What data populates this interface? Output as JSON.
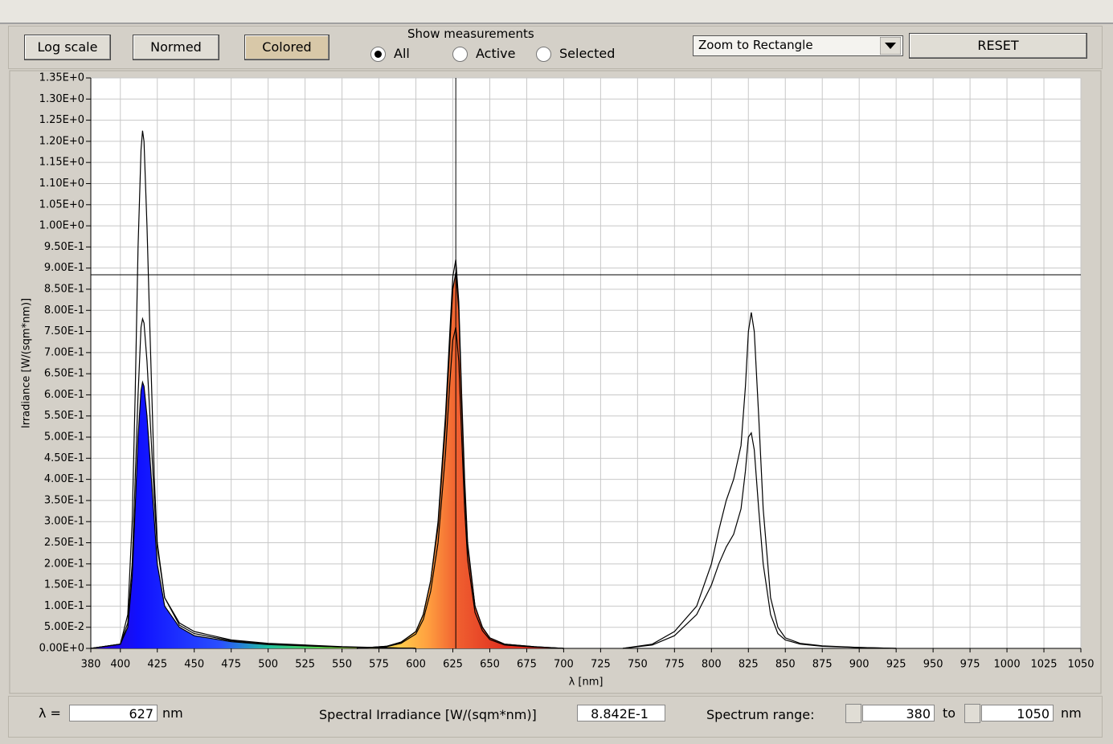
{
  "toolbar": {
    "buttons": [
      {
        "label": "Log scale",
        "pressed": false
      },
      {
        "label": "Normed",
        "pressed": false
      },
      {
        "label": "Colored",
        "pressed": true
      }
    ],
    "show_label": "Show measurements",
    "radios": [
      {
        "label": "All",
        "selected": true
      },
      {
        "label": "Active",
        "selected": false
      },
      {
        "label": "Selected",
        "selected": false
      }
    ],
    "dropdown": "Zoom to Rectangle",
    "reset": "RESET"
  },
  "chart_data": {
    "type": "line",
    "xlabel": "λ [nm]",
    "ylabel": "Irradiance [W/(sqm*nm)]",
    "xlim": [
      380,
      1050
    ],
    "xticks": [
      380,
      400,
      425,
      450,
      475,
      500,
      525,
      550,
      575,
      600,
      625,
      650,
      675,
      700,
      725,
      750,
      775,
      800,
      825,
      850,
      875,
      900,
      925,
      950,
      975,
      1000,
      1025,
      1050
    ],
    "ylim": [
      0,
      1.35
    ],
    "yticks": [
      {
        "value": 0,
        "label": "0.00E+0"
      },
      {
        "value": 0.05,
        "label": "5.00E-2"
      },
      {
        "value": 0.1,
        "label": "1.00E-1"
      },
      {
        "value": 0.15,
        "label": "1.50E-1"
      },
      {
        "value": 0.2,
        "label": "2.00E-1"
      },
      {
        "value": 0.25,
        "label": "2.50E-1"
      },
      {
        "value": 0.3,
        "label": "3.00E-1"
      },
      {
        "value": 0.35,
        "label": "3.50E-1"
      },
      {
        "value": 0.4,
        "label": "4.00E-1"
      },
      {
        "value": 0.45,
        "label": "4.50E-1"
      },
      {
        "value": 0.5,
        "label": "5.00E-1"
      },
      {
        "value": 0.55,
        "label": "5.50E-1"
      },
      {
        "value": 0.6,
        "label": "6.00E-1"
      },
      {
        "value": 0.65,
        "label": "6.50E-1"
      },
      {
        "value": 0.7,
        "label": "7.00E-1"
      },
      {
        "value": 0.75,
        "label": "7.50E-1"
      },
      {
        "value": 0.8,
        "label": "8.00E-1"
      },
      {
        "value": 0.85,
        "label": "8.50E-1"
      },
      {
        "value": 0.9,
        "label": "9.00E-1"
      },
      {
        "value": 0.95,
        "label": "9.50E-1"
      },
      {
        "value": 1,
        "label": "1.00E+0"
      },
      {
        "value": 1.05,
        "label": "1.05E+0"
      },
      {
        "value": 1.1,
        "label": "1.10E+0"
      },
      {
        "value": 1.15,
        "label": "1.15E+0"
      },
      {
        "value": 1.2,
        "label": "1.20E+0"
      },
      {
        "value": 1.25,
        "label": "1.25E+0"
      },
      {
        "value": 1.3,
        "label": "1.30E+0"
      },
      {
        "value": 1.35,
        "label": "1.35E+0"
      }
    ],
    "grid": true,
    "series": [
      {
        "color": "#000000",
        "colored": false,
        "x": [
          380,
          400,
          405,
          408,
          410,
          412,
          414,
          415,
          416,
          418,
          420,
          423,
          425,
          430,
          440,
          450,
          475,
          500,
          550,
          600
        ],
        "values": [
          0,
          0.01,
          0.08,
          0.3,
          0.6,
          0.95,
          1.18,
          1.225,
          1.2,
          1.0,
          0.75,
          0.4,
          0.25,
          0.12,
          0.06,
          0.04,
          0.02,
          0.012,
          0.004,
          0
        ]
      },
      {
        "color": "#000000",
        "colored": false,
        "x": [
          380,
          400,
          405,
          408,
          410,
          412,
          414,
          415,
          416,
          418,
          420,
          423,
          425,
          430,
          440,
          450,
          475,
          500,
          550,
          600
        ],
        "values": [
          0,
          0.01,
          0.06,
          0.2,
          0.4,
          0.6,
          0.76,
          0.78,
          0.77,
          0.68,
          0.55,
          0.35,
          0.24,
          0.12,
          0.055,
          0.035,
          0.018,
          0.01,
          0.003,
          0
        ]
      },
      {
        "color": "#000000",
        "colored": true,
        "x": [
          380,
          400,
          405,
          408,
          410,
          412,
          414,
          415,
          416,
          418,
          420,
          423,
          425,
          430,
          440,
          450,
          475,
          500,
          550,
          600
        ],
        "values": [
          0,
          0.01,
          0.05,
          0.17,
          0.33,
          0.5,
          0.61,
          0.63,
          0.62,
          0.55,
          0.45,
          0.3,
          0.2,
          0.1,
          0.05,
          0.03,
          0.016,
          0.009,
          0.003,
          0
        ]
      },
      {
        "color": "#000000",
        "colored": false,
        "x": [
          560,
          580,
          590,
          600,
          605,
          610,
          615,
          620,
          623,
          625,
          627,
          629,
          631,
          633,
          635,
          640,
          645,
          650,
          660,
          680,
          700
        ],
        "values": [
          0,
          0.005,
          0.015,
          0.04,
          0.08,
          0.16,
          0.3,
          0.55,
          0.75,
          0.88,
          0.92,
          0.82,
          0.6,
          0.4,
          0.25,
          0.1,
          0.05,
          0.025,
          0.01,
          0.004,
          0
        ]
      },
      {
        "color": "#000000",
        "colored": true,
        "x": [
          560,
          580,
          590,
          600,
          605,
          610,
          615,
          620,
          623,
          625,
          627,
          629,
          631,
          633,
          635,
          640,
          645,
          650,
          660,
          680,
          700
        ],
        "values": [
          0,
          0.005,
          0.014,
          0.04,
          0.08,
          0.16,
          0.29,
          0.53,
          0.72,
          0.85,
          0.89,
          0.8,
          0.58,
          0.38,
          0.24,
          0.1,
          0.05,
          0.025,
          0.01,
          0.004,
          0
        ]
      },
      {
        "color": "#000000",
        "colored": false,
        "x": [
          560,
          580,
          590,
          600,
          605,
          610,
          615,
          620,
          623,
          625,
          627,
          629,
          631,
          633,
          635,
          640,
          645,
          650,
          660,
          680,
          700
        ],
        "values": [
          0,
          0.004,
          0.012,
          0.034,
          0.068,
          0.135,
          0.25,
          0.46,
          0.63,
          0.73,
          0.76,
          0.68,
          0.5,
          0.33,
          0.21,
          0.085,
          0.042,
          0.021,
          0.008,
          0.003,
          0
        ]
      },
      {
        "color": "#000000",
        "colored": false,
        "x": [
          740,
          760,
          775,
          790,
          800,
          805,
          810,
          815,
          820,
          823,
          825,
          827,
          829,
          832,
          835,
          840,
          845,
          850,
          860,
          875,
          900,
          925
        ],
        "values": [
          0,
          0.01,
          0.04,
          0.1,
          0.2,
          0.28,
          0.35,
          0.4,
          0.48,
          0.62,
          0.75,
          0.795,
          0.75,
          0.55,
          0.33,
          0.12,
          0.05,
          0.025,
          0.012,
          0.006,
          0.002,
          0
        ]
      },
      {
        "color": "#000000",
        "colored": false,
        "x": [
          740,
          760,
          775,
          790,
          800,
          805,
          810,
          815,
          820,
          823,
          825,
          827,
          829,
          832,
          835,
          840,
          845,
          850,
          860,
          875,
          900,
          925
        ],
        "values": [
          0,
          0.008,
          0.03,
          0.08,
          0.15,
          0.2,
          0.24,
          0.27,
          0.33,
          0.42,
          0.5,
          0.51,
          0.47,
          0.33,
          0.2,
          0.08,
          0.035,
          0.02,
          0.01,
          0.005,
          0.002,
          0
        ]
      }
    ],
    "cursor": {
      "x": 627,
      "y": {
        "value": 0.8842,
        "label": "8.842E-1"
      }
    }
  },
  "footer": {
    "lambda_label": "λ =",
    "lambda_unit": "nm",
    "irradiance_label": "Spectral Irradiance [W/(sqm*nm)]",
    "range_label": "Spectrum range:",
    "range_to": "to",
    "range_unit": "nm"
  }
}
